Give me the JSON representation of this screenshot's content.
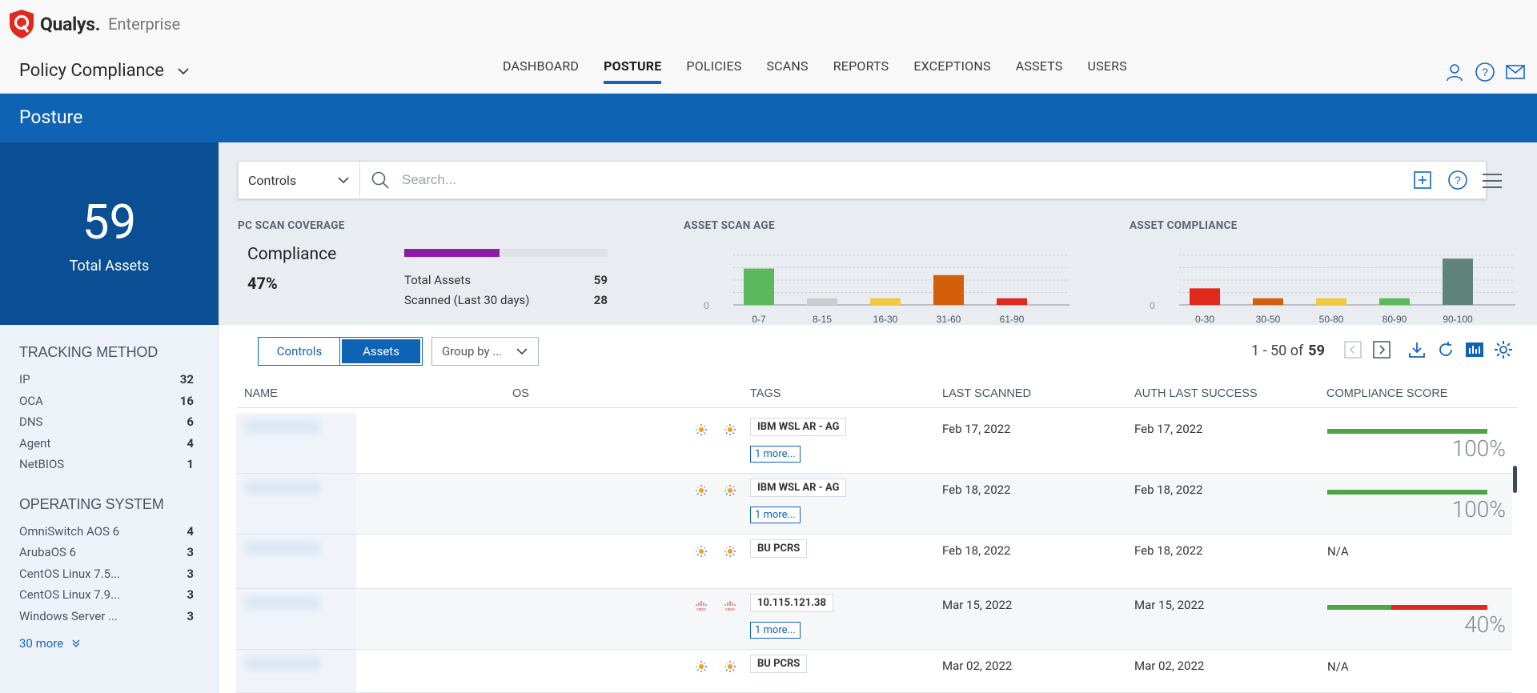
{
  "brand": {
    "name": "Qualys.",
    "edition": "Enterprise"
  },
  "app": {
    "title": "Policy Compliance"
  },
  "nav": [
    "DASHBOARD",
    "POSTURE",
    "POLICIES",
    "SCANS",
    "REPORTS",
    "EXCEPTIONS",
    "ASSETS",
    "USERS"
  ],
  "nav_active": "POSTURE",
  "page": {
    "title": "Posture"
  },
  "summary": {
    "total": "59",
    "label": "Total Assets"
  },
  "search": {
    "scope": "Controls",
    "placeholder": "Search..."
  },
  "coverage": {
    "title": "PC SCAN COVERAGE",
    "label": "Compliance",
    "percent": "47%",
    "fill_pct": 47,
    "rows": [
      {
        "label": "Total Assets",
        "value": "59"
      },
      {
        "label": "Scanned (Last 30 days)",
        "value": "28"
      }
    ]
  },
  "chart_data": [
    {
      "type": "bar",
      "title": "ASSET SCAN AGE",
      "categories": [
        "0-7",
        "8-15",
        "16-30",
        "31-60",
        "61-90"
      ],
      "values": [
        11,
        2,
        2,
        9,
        2
      ],
      "colors": [
        "#5cb85c",
        "#cccccc",
        "#f0c93c",
        "#d35f0b",
        "#e0281c"
      ],
      "ylim": [
        0,
        15
      ],
      "zero_label": "0",
      "grid": true
    },
    {
      "type": "bar",
      "title": "ASSET COMPLIANCE",
      "categories": [
        "0-30",
        "30-50",
        "50-80",
        "80-90",
        "90-100"
      ],
      "values": [
        5,
        2,
        2,
        2,
        14
      ],
      "colors": [
        "#e0281c",
        "#d35f0b",
        "#f0c93c",
        "#5cb85c",
        "#60847c"
      ],
      "ylim": [
        0,
        15
      ],
      "zero_label": "0",
      "grid": true
    }
  ],
  "facets": {
    "tracking": {
      "title": "TRACKING METHOD",
      "items": [
        {
          "label": "IP",
          "count": "32"
        },
        {
          "label": "OCA",
          "count": "16"
        },
        {
          "label": "DNS",
          "count": "6"
        },
        {
          "label": "Agent",
          "count": "4"
        },
        {
          "label": "NetBIOS",
          "count": "1"
        }
      ]
    },
    "os": {
      "title": "OPERATING SYSTEM",
      "items": [
        {
          "label": "OmniSwitch AOS 6",
          "count": "4"
        },
        {
          "label": "ArubaOS 6",
          "count": "3"
        },
        {
          "label": "CentOS Linux 7.5...",
          "count": "3"
        },
        {
          "label": "CentOS Linux 7.9...",
          "count": "3"
        },
        {
          "label": "Windows Server ...",
          "count": "3"
        }
      ],
      "more": "30 more"
    }
  },
  "toolbar": {
    "toggle_controls": "Controls",
    "toggle_assets": "Assets",
    "group_by": "Group by ...",
    "pager_range": "1 - 50 of",
    "pager_total": "59"
  },
  "table": {
    "headers": {
      "name": "NAME",
      "os": "OS",
      "tags": "TAGS",
      "last_scanned": "LAST SCANNED",
      "auth": "AUTH LAST SUCCESS",
      "score": "COMPLIANCE SCORE"
    },
    "rows": [
      {
        "tag": "IBM WSL AR - AG",
        "more": "1 more...",
        "last_scanned": "Feb 17, 2022",
        "auth": "Feb 17, 2022",
        "score": "100%",
        "pass": 100,
        "fail": 0,
        "icon": "agent"
      },
      {
        "tag": "IBM WSL AR - AG",
        "more": "1 more...",
        "last_scanned": "Feb 18, 2022",
        "auth": "Feb 18, 2022",
        "score": "100%",
        "pass": 100,
        "fail": 0,
        "icon": "agent"
      },
      {
        "tag": "BU PCRS",
        "more": "",
        "last_scanned": "Feb 18, 2022",
        "auth": "Feb 18, 2022",
        "score": "N/A",
        "pass": 0,
        "fail": 0,
        "icon": "agent"
      },
      {
        "tag": "10.115.121.38",
        "more": "1 more...",
        "last_scanned": "Mar 15, 2022",
        "auth": "Mar 15, 2022",
        "score": "40%",
        "pass": 40,
        "fail": 60,
        "icon": "cisco"
      },
      {
        "tag": "BU PCRS",
        "more": "",
        "last_scanned": "Mar 02, 2022",
        "auth": "Mar 02, 2022",
        "score": "N/A",
        "pass": 0,
        "fail": 0,
        "icon": "agent"
      }
    ]
  }
}
